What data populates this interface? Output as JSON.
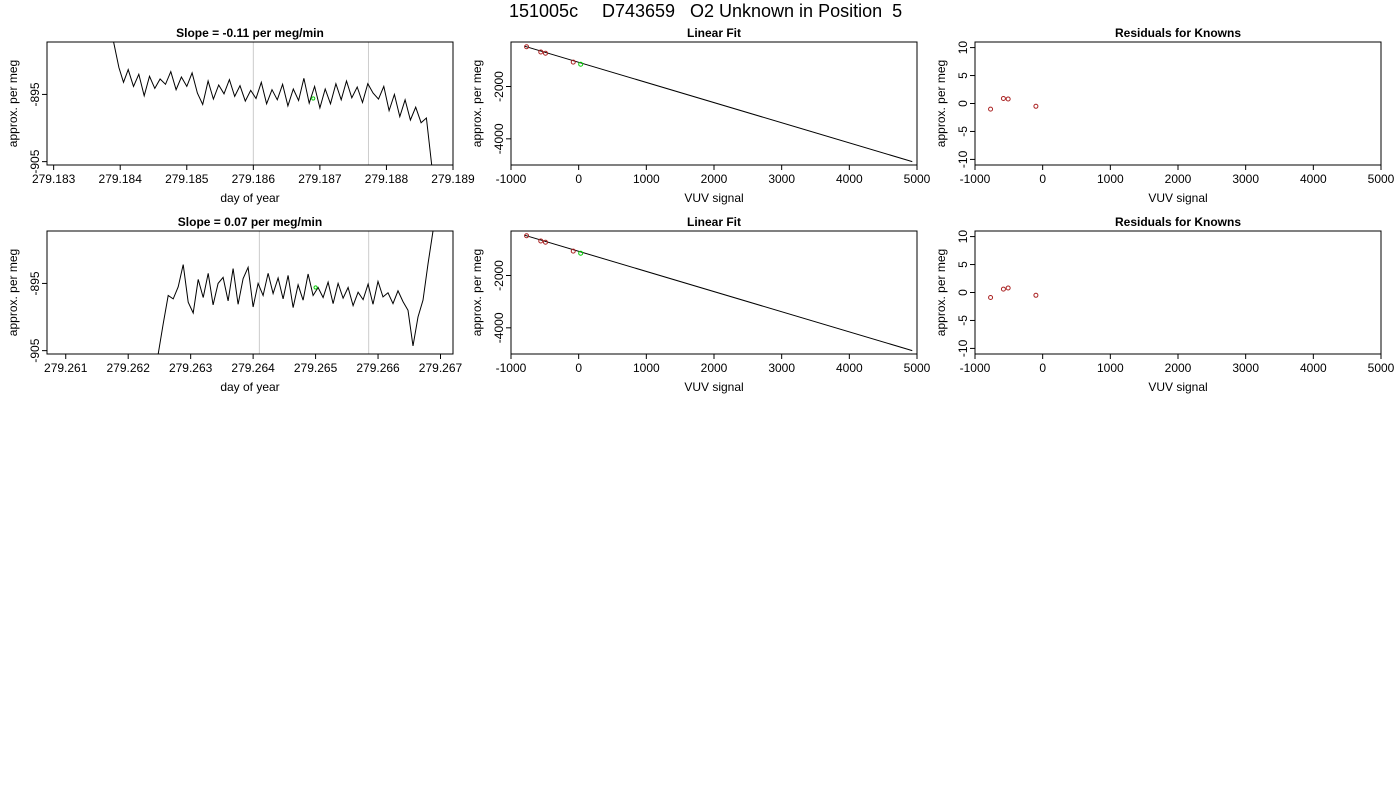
{
  "header": {
    "run_id": "151005c",
    "sample_id": "D743659",
    "description": "O2 Unknown in Position  5"
  },
  "chart_data": [
    {
      "type": "line",
      "title": "Slope =  -0.11  per meg/min",
      "xlabel": "day of year",
      "ylabel": "approx. per meg",
      "xlim": [
        279.1829,
        279.189
      ],
      "ylim": [
        -905.5,
        -887.2
      ],
      "x_ticks": [
        "279.183",
        "279.184",
        "279.185",
        "279.186",
        "279.187",
        "279.188",
        "279.189"
      ],
      "x_tick_values": [
        279.183,
        279.184,
        279.185,
        279.186,
        279.187,
        279.188,
        279.189
      ],
      "y_ticks": [
        "-905",
        "-895"
      ],
      "y_tick_values": [
        -905,
        -895
      ],
      "vlines": [
        279.186,
        279.18773
      ],
      "series": [
        {
          "x": [
            279.1839,
            279.18398,
            279.18405,
            279.18412,
            279.1842,
            279.18428,
            279.18436,
            279.18444,
            279.18452,
            279.1846,
            279.18468,
            279.18476,
            279.18484,
            279.18492,
            279.185,
            279.18508,
            279.18516,
            279.18524,
            279.18532,
            279.1854,
            279.18548,
            279.18556,
            279.18564,
            279.18572,
            279.1858,
            279.18588,
            279.18596,
            279.18604,
            279.18612,
            279.1862,
            279.18628,
            279.18636,
            279.18644,
            279.18652,
            279.1866,
            279.18668,
            279.18676,
            279.18684,
            279.18692,
            279.187,
            279.18708,
            279.18716,
            279.18724,
            279.18732,
            279.1874,
            279.18748,
            279.18756,
            279.18764,
            279.18772,
            279.1878,
            279.18788,
            279.18796,
            279.18804,
            279.18812,
            279.1882,
            279.18828,
            279.18836,
            279.18844,
            279.18852,
            279.1886,
            279.18868
          ],
          "y": [
            -887.2,
            -891.0,
            -893.2,
            -891.3,
            -893.8,
            -892.0,
            -895.2,
            -892.3,
            -894.1,
            -892.7,
            -893.5,
            -891.6,
            -894.3,
            -892.4,
            -893.8,
            -891.8,
            -894.8,
            -896.5,
            -893.0,
            -895.7,
            -893.6,
            -894.9,
            -892.8,
            -895.3,
            -893.7,
            -896.0,
            -894.4,
            -895.6,
            -893.2,
            -896.4,
            -894.3,
            -895.8,
            -893.5,
            -896.7,
            -894.2,
            -895.9,
            -892.6,
            -896.3,
            -893.8,
            -897.0,
            -894.2,
            -896.4,
            -893.4,
            -895.8,
            -893.0,
            -895.5,
            -893.9,
            -896.2,
            -893.4,
            -894.8,
            -895.7,
            -893.8,
            -897.4,
            -895.0,
            -898.3,
            -895.8,
            -898.8,
            -896.9,
            -899.2,
            -898.5,
            -905.5
          ]
        }
      ],
      "marker": {
        "x": 279.1869,
        "y": -895.6,
        "color": "#00cc00"
      }
    },
    {
      "type": "scatter",
      "title": "Linear Fit",
      "xlabel": "VUV signal",
      "ylabel": "approx. per meg",
      "xlim": [
        -1000,
        5000
      ],
      "ylim": [
        -5000,
        -300
      ],
      "x_ticks": [
        "-1000",
        "0",
        "1000",
        "2000",
        "3000",
        "4000",
        "5000"
      ],
      "x_tick_values": [
        -1000,
        0,
        1000,
        2000,
        3000,
        4000,
        5000
      ],
      "y_ticks": [
        "-4000",
        "-2000"
      ],
      "y_tick_values": [
        -4000,
        -2000
      ],
      "knowns": {
        "x": [
          -770,
          -560,
          -490,
          -80
        ],
        "y": [
          -480,
          -680,
          -730,
          -1070
        ],
        "color": "#aa2222"
      },
      "unknown": {
        "x": [
          30
        ],
        "y": [
          -1150
        ],
        "color": "#00cc00"
      },
      "fit_line": {
        "x": [
          -800,
          4930
        ],
        "y": [
          -460,
          -4870
        ]
      }
    },
    {
      "type": "scatter",
      "title": "Residuals for Knowns",
      "xlabel": "VUV signal",
      "ylabel": "approx. per meg",
      "xlim": [
        -1000,
        5000
      ],
      "ylim": [
        -11,
        11
      ],
      "x_ticks": [
        "-1000",
        "0",
        "1000",
        "2000",
        "3000",
        "4000",
        "5000"
      ],
      "x_tick_values": [
        -1000,
        0,
        1000,
        2000,
        3000,
        4000,
        5000
      ],
      "y_ticks": [
        "-10",
        "-5",
        "0",
        "5",
        "10"
      ],
      "y_tick_values": [
        -10,
        -5,
        0,
        5,
        10
      ],
      "points": {
        "x": [
          -770,
          -580,
          -510,
          -100
        ],
        "y": [
          -1.0,
          0.9,
          0.8,
          -0.5
        ],
        "color": "#aa2222"
      }
    },
    {
      "type": "line",
      "title": "Slope =  0.07  per meg/min",
      "xlabel": "day of year",
      "ylabel": "approx. per meg",
      "xlim": [
        279.2607,
        279.2672
      ],
      "ylim": [
        -905.5,
        -887.2
      ],
      "x_ticks": [
        "279.261",
        "279.262",
        "279.263",
        "279.264",
        "279.265",
        "279.266",
        "279.267"
      ],
      "x_tick_values": [
        279.261,
        279.262,
        279.263,
        279.264,
        279.265,
        279.266,
        279.267
      ],
      "y_ticks": [
        "-905",
        "-895"
      ],
      "y_tick_values": [
        -905,
        -895
      ],
      "vlines": [
        279.2641,
        279.26585
      ],
      "series": [
        {
          "x": [
            279.26248,
            279.26256,
            279.26264,
            279.26272,
            279.2628,
            279.26288,
            279.26296,
            279.26304,
            279.26312,
            279.2632,
            279.26328,
            279.26336,
            279.26344,
            279.26352,
            279.2636,
            279.26368,
            279.26376,
            279.26384,
            279.26392,
            279.264,
            279.26408,
            279.26416,
            279.26424,
            279.26432,
            279.2644,
            279.26448,
            279.26456,
            279.26464,
            279.26472,
            279.2648,
            279.26488,
            279.26496,
            279.26504,
            279.26512,
            279.2652,
            279.26528,
            279.26536,
            279.26544,
            279.26552,
            279.2656,
            279.26568,
            279.26576,
            279.26584,
            279.26592,
            279.266,
            279.26608,
            279.26616,
            279.26624,
            279.26632,
            279.2664,
            279.26648,
            279.26656,
            279.26664,
            279.26672,
            279.2668,
            279.26688,
            279.26696
          ],
          "y": [
            -905.5,
            -901.0,
            -896.8,
            -897.3,
            -895.5,
            -892.2,
            -897.8,
            -899.4,
            -894.4,
            -897.1,
            -893.5,
            -898.2,
            -895.0,
            -894.1,
            -897.6,
            -892.8,
            -898.1,
            -894.3,
            -892.6,
            -898.5,
            -895.0,
            -896.8,
            -893.5,
            -896.5,
            -894.2,
            -897.3,
            -893.8,
            -898.6,
            -895.2,
            -897.5,
            -893.6,
            -896.8,
            -895.6,
            -897.1,
            -894.8,
            -898.0,
            -895.0,
            -897.2,
            -895.6,
            -898.3,
            -896.3,
            -897.4,
            -895.1,
            -898.1,
            -894.7,
            -897.0,
            -896.4,
            -898.0,
            -896.1,
            -897.7,
            -899.0,
            -904.3,
            -900.0,
            -897.5,
            -892.1,
            -887.2,
            -887.2
          ]
        }
      ],
      "marker": {
        "x": 279.265,
        "y": -895.6,
        "color": "#00cc00"
      }
    },
    {
      "type": "scatter",
      "title": "Linear Fit",
      "xlabel": "VUV signal",
      "ylabel": "approx. per meg",
      "xlim": [
        -1000,
        5000
      ],
      "ylim": [
        -5000,
        -300
      ],
      "x_ticks": [
        "-1000",
        "0",
        "1000",
        "2000",
        "3000",
        "4000",
        "5000"
      ],
      "x_tick_values": [
        -1000,
        0,
        1000,
        2000,
        3000,
        4000,
        5000
      ],
      "y_ticks": [
        "-4000",
        "-2000"
      ],
      "y_tick_values": [
        -4000,
        -2000
      ],
      "knowns": {
        "x": [
          -770,
          -560,
          -490,
          -80
        ],
        "y": [
          -480,
          -680,
          -730,
          -1070
        ],
        "color": "#aa2222"
      },
      "unknown": {
        "x": [
          30
        ],
        "y": [
          -1150
        ],
        "color": "#00cc00"
      },
      "fit_line": {
        "x": [
          -800,
          4930
        ],
        "y": [
          -460,
          -4870
        ]
      }
    },
    {
      "type": "scatter",
      "title": "Residuals for Knowns",
      "xlabel": "VUV signal",
      "ylabel": "approx. per meg",
      "xlim": [
        -1000,
        5000
      ],
      "ylim": [
        -11,
        11
      ],
      "x_ticks": [
        "-1000",
        "0",
        "1000",
        "2000",
        "3000",
        "4000",
        "5000"
      ],
      "x_tick_values": [
        -1000,
        0,
        1000,
        2000,
        3000,
        4000,
        5000
      ],
      "y_ticks": [
        "-10",
        "-5",
        "0",
        "5",
        "10"
      ],
      "y_tick_values": [
        -10,
        -5,
        0,
        5,
        10
      ],
      "points": {
        "x": [
          -770,
          -580,
          -510,
          -100
        ],
        "y": [
          -0.9,
          0.6,
          0.8,
          -0.5
        ],
        "color": "#aa2222"
      }
    }
  ]
}
